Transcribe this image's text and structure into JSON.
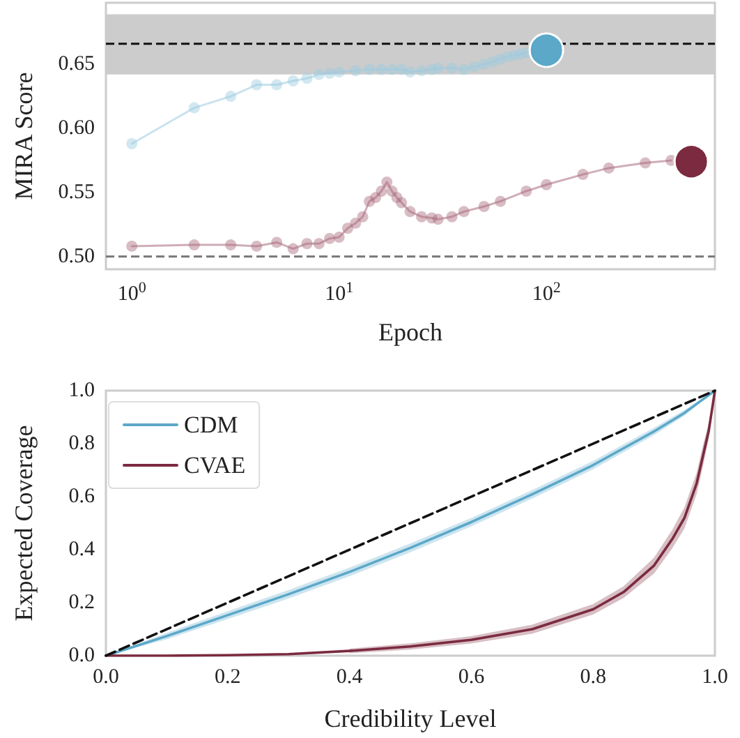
{
  "chart_data": [
    {
      "type": "line",
      "xlabel": "Epoch",
      "ylabel": "MIRA Score",
      "log": "x",
      "xlim": [
        0.75,
        650
      ],
      "ylim": [
        0.49,
        0.698
      ],
      "xticks": [
        {
          "value": 1,
          "label": "10$^{0}$"
        },
        {
          "value": 10,
          "label": "10$^{1}$"
        },
        {
          "value": 100,
          "label": "10$^{2}$"
        }
      ],
      "yticks": [
        {
          "value": 0.5,
          "label": "0.50"
        },
        {
          "value": 0.55,
          "label": "0.55"
        },
        {
          "value": 0.6,
          "label": "0.60"
        },
        {
          "value": 0.65,
          "label": "0.65"
        }
      ],
      "grid": false,
      "legend": false,
      "marker": "circle",
      "series": [
        {
          "color": "#9ccbe0",
          "x": [
            1,
            2,
            3,
            4,
            5,
            6,
            7,
            8,
            9,
            10,
            12,
            14,
            16,
            18,
            20,
            22,
            25,
            28,
            30,
            35,
            40,
            45,
            50,
            55,
            60,
            65,
            70,
            75,
            80,
            90
          ],
          "values": [
            0.588,
            0.616,
            0.625,
            0.634,
            0.634,
            0.637,
            0.639,
            0.642,
            0.643,
            0.644,
            0.645,
            0.646,
            0.646,
            0.646,
            0.646,
            0.644,
            0.645,
            0.646,
            0.647,
            0.647,
            0.646,
            0.648,
            0.65,
            0.652,
            0.654,
            0.656,
            0.657,
            0.658,
            0.659,
            0.66
          ]
        },
        {
          "color": "#a86a7c",
          "x": [
            1,
            2,
            3,
            4,
            5,
            6,
            7,
            8,
            9,
            10,
            11,
            12,
            13,
            14,
            15,
            16,
            17,
            18,
            19,
            20,
            22,
            25,
            28,
            30,
            35,
            40,
            50,
            60,
            80,
            100,
            150,
            200,
            300,
            400
          ],
          "values": [
            0.508,
            0.509,
            0.509,
            0.508,
            0.511,
            0.506,
            0.51,
            0.51,
            0.514,
            0.515,
            0.522,
            0.526,
            0.531,
            0.543,
            0.546,
            0.551,
            0.558,
            0.551,
            0.546,
            0.542,
            0.535,
            0.531,
            0.53,
            0.529,
            0.531,
            0.535,
            0.539,
            0.543,
            0.551,
            0.556,
            0.564,
            0.569,
            0.573,
            0.575
          ]
        },
        {
          "type": "scatter",
          "color": "#5ba8c9",
          "x": [
            100
          ],
          "values": [
            0.661
          ]
        },
        {
          "type": "scatter",
          "color": "#7b2a3f",
          "x": [
            500
          ],
          "values": [
            0.574
          ]
        }
      ],
      "ref_lines": [
        {
          "axis": "y",
          "value": 0.666,
          "color": "#111111",
          "line_style": "dashed"
        },
        {
          "axis": "y",
          "value": 0.5,
          "color": "#777777",
          "line_style": "dashed"
        }
      ],
      "bands": [
        {
          "axis": "y",
          "from": 0.642,
          "to": 0.689,
          "color": "#cccccc"
        }
      ]
    },
    {
      "type": "line",
      "xlabel": "Credibility Level",
      "ylabel": "Expected Coverage",
      "xlim": [
        0,
        1
      ],
      "ylim": [
        0,
        1
      ],
      "xticks": [
        {
          "value": 0,
          "label": "0.0"
        },
        {
          "value": 0.2,
          "label": "0.2"
        },
        {
          "value": 0.4,
          "label": "0.4"
        },
        {
          "value": 0.6,
          "label": "0.6"
        },
        {
          "value": 0.8,
          "label": "0.8"
        },
        {
          "value": 1,
          "label": "1.0"
        }
      ],
      "yticks": [
        {
          "value": 0,
          "label": "0.0"
        },
        {
          "value": 0.2,
          "label": "0.2"
        },
        {
          "value": 0.4,
          "label": "0.4"
        },
        {
          "value": 0.6,
          "label": "0.6"
        },
        {
          "value": 0.8,
          "label": "0.8"
        },
        {
          "value": 1,
          "label": "1.0"
        }
      ],
      "grid": false,
      "legend": "top left",
      "marker": "none",
      "series": [
        {
          "name": "CDM",
          "color": "#5ba8c9",
          "x": [
            0,
            0.1,
            0.2,
            0.3,
            0.4,
            0.5,
            0.6,
            0.7,
            0.8,
            0.9,
            0.95,
            1
          ],
          "values": [
            0,
            0.074,
            0.153,
            0.232,
            0.316,
            0.407,
            0.504,
            0.609,
            0.719,
            0.846,
            0.916,
            1
          ],
          "lower": [
            0,
            0.062,
            0.138,
            0.216,
            0.3,
            0.39,
            0.488,
            0.593,
            0.703,
            0.832,
            0.905,
            1
          ],
          "upper": [
            0,
            0.086,
            0.168,
            0.248,
            0.332,
            0.424,
            0.52,
            0.625,
            0.735,
            0.86,
            0.927,
            1
          ]
        },
        {
          "name": "CVAE",
          "color": "#7b2a3f",
          "x": [
            0,
            0.1,
            0.2,
            0.3,
            0.4,
            0.5,
            0.6,
            0.7,
            0.8,
            0.85,
            0.9,
            0.93,
            0.95,
            0.97,
            0.98,
            0.99,
            1
          ],
          "values": [
            0,
            0,
            0.002,
            0.006,
            0.018,
            0.035,
            0.06,
            0.1,
            0.175,
            0.24,
            0.34,
            0.44,
            0.52,
            0.65,
            0.75,
            0.85,
            1
          ],
          "lower": [
            null,
            null,
            null,
            null,
            0.009,
            0.023,
            0.046,
            0.083,
            0.155,
            0.218,
            0.31,
            0.405,
            0.48,
            0.61,
            0.71,
            0.82,
            1
          ],
          "upper": [
            null,
            null,
            null,
            null,
            0.027,
            0.047,
            0.074,
            0.117,
            0.195,
            0.262,
            0.37,
            0.475,
            0.56,
            0.69,
            0.79,
            0.88,
            1
          ]
        },
        {
          "color": "#111111",
          "line_style": "dashed",
          "x": [
            0,
            1
          ],
          "values": [
            0,
            1
          ]
        }
      ]
    }
  ]
}
